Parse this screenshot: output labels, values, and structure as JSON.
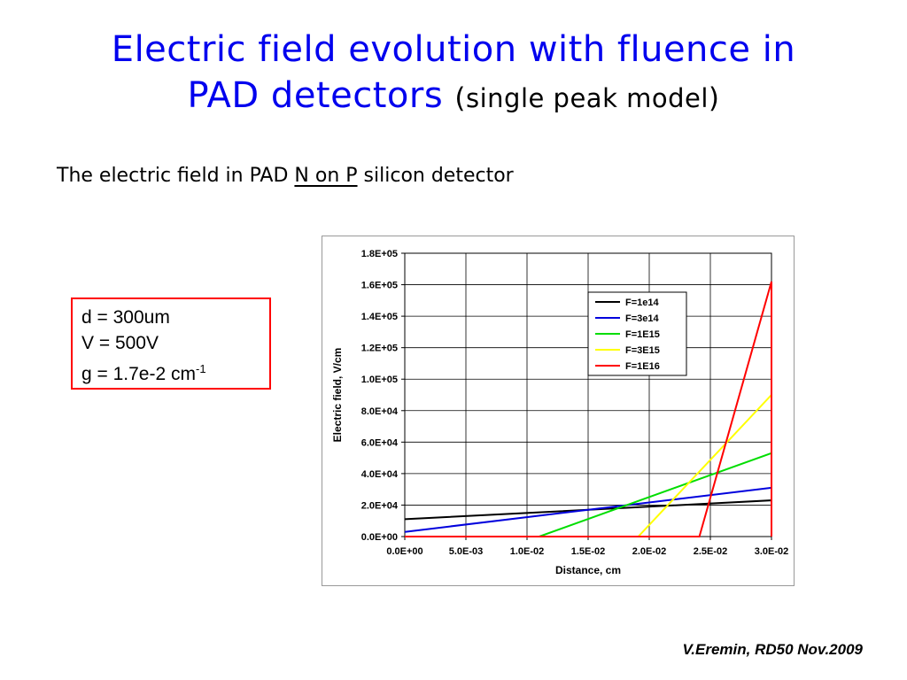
{
  "slide": {
    "title_line1": "Electric field evolution with fluence in",
    "title_line2": "PAD detectors",
    "title_paren_open": "(",
    "title_paren_text": "single peak model",
    "title_paren_close": ")",
    "subtitle_before": "The electric field in PAD",
    "subtitle_underlined": "N on P",
    "subtitle_after": "silicon detector",
    "params": {
      "d": "d = 300um",
      "v": "V = 500V",
      "g": "g = 1.7e-2 cm",
      "g_sup": "-1"
    },
    "credit": "V.Eremin, RD50 Nov.2009"
  },
  "chart_data": {
    "type": "line",
    "xlabel": "Distance, cm",
    "ylabel": "Electric field, V/cm",
    "xlim": [
      0,
      0.03
    ],
    "ylim": [
      0,
      180000
    ],
    "x_ticks": [
      "0.0E+00",
      "5.0E-03",
      "1.0E-02",
      "1.5E-02",
      "2.0E-02",
      "2.5E-02",
      "3.0E-02"
    ],
    "y_ticks": [
      "0.0E+00",
      "2.0E+04",
      "4.0E+04",
      "6.0E+04",
      "8.0E+04",
      "1.0E+05",
      "1.2E+05",
      "1.4E+05",
      "1.6E+05",
      "1.8E+05"
    ],
    "grid": true,
    "legend_position": "top-right",
    "series": [
      {
        "name": "F=1e14",
        "color": "#000000",
        "x": [
          0,
          0.03,
          0.03
        ],
        "y": [
          11000,
          23000,
          3000
        ]
      },
      {
        "name": "F=3e14",
        "color": "#0000dd",
        "x": [
          0,
          0.03,
          0.03
        ],
        "y": [
          3000,
          31000,
          3000
        ]
      },
      {
        "name": "F=1E15",
        "color": "#00dd00",
        "x": [
          0,
          0.011,
          0.03,
          0.03
        ],
        "y": [
          0,
          0,
          53000,
          3000
        ]
      },
      {
        "name": "F=3E15",
        "color": "#ffff00",
        "x": [
          0,
          0.0191,
          0.03,
          0.03
        ],
        "y": [
          0,
          0,
          90000,
          0
        ]
      },
      {
        "name": "F=1E16",
        "color": "#ff0000",
        "x": [
          0,
          0.0241,
          0.03,
          0.03
        ],
        "y": [
          0,
          0,
          162000,
          0
        ]
      }
    ]
  }
}
